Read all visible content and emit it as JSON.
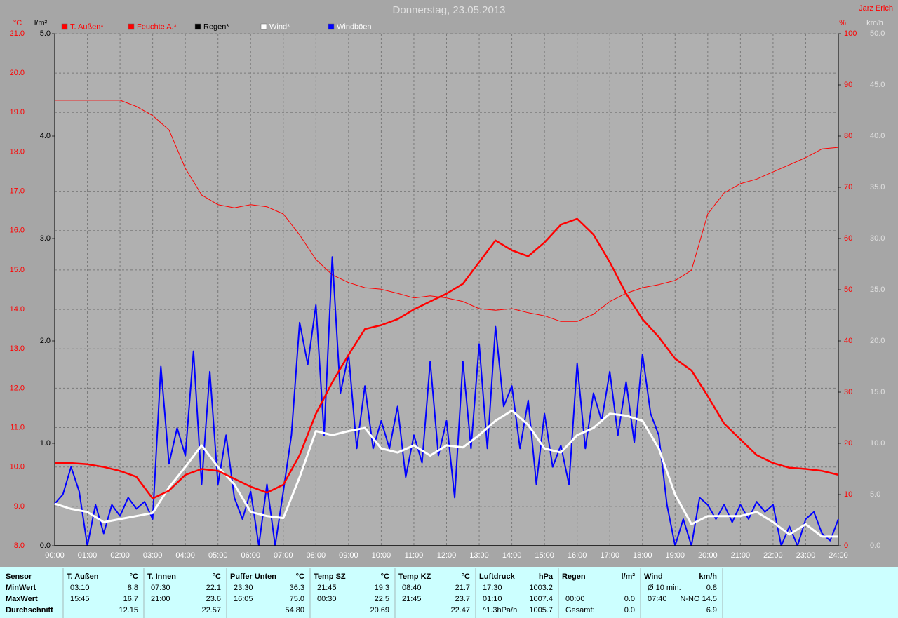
{
  "chart_data": {
    "type": "line",
    "title": "Donnerstag, 23.05.2013",
    "author": "Jarz Erich",
    "y_label": "°C",
    "y2_label": "%",
    "y3_label": "km/h",
    "y4_label": "l/m²",
    "xlim": [
      0,
      24
    ],
    "xticks": [
      {
        "value": 0,
        "label": "00:00"
      },
      {
        "value": 1,
        "label": "01:00"
      },
      {
        "value": 2,
        "label": "02:00"
      },
      {
        "value": 3,
        "label": "03:00"
      },
      {
        "value": 4,
        "label": "04:00"
      },
      {
        "value": 5,
        "label": "05:00"
      },
      {
        "value": 6,
        "label": "06:00"
      },
      {
        "value": 7,
        "label": "07:00"
      },
      {
        "value": 8,
        "label": "08:00"
      },
      {
        "value": 9,
        "label": "09:00"
      },
      {
        "value": 10,
        "label": "10:00"
      },
      {
        "value": 11,
        "label": "11:00"
      },
      {
        "value": 12,
        "label": "12:00"
      },
      {
        "value": 13,
        "label": "13:00"
      },
      {
        "value": 14,
        "label": "14:00"
      },
      {
        "value": 15,
        "label": "15:00"
      },
      {
        "value": 16,
        "label": "16:00"
      },
      {
        "value": 17,
        "label": "17:00"
      },
      {
        "value": 18,
        "label": "18:00"
      },
      {
        "value": 19,
        "label": "19:00"
      },
      {
        "value": 20,
        "label": "20:00"
      },
      {
        "value": 21,
        "label": "21:00"
      },
      {
        "value": 22,
        "label": "22:00"
      },
      {
        "value": 23,
        "label": "23:00"
      },
      {
        "value": 24,
        "label": "24:00"
      }
    ],
    "ylim": [
      8,
      21
    ],
    "yticks": [
      {
        "value": 8,
        "label": "8.0"
      },
      {
        "value": 9,
        "label": "9.0"
      },
      {
        "value": 10,
        "label": "10.0"
      },
      {
        "value": 11,
        "label": "11.0"
      },
      {
        "value": 12,
        "label": "12.0"
      },
      {
        "value": 13,
        "label": "13.0"
      },
      {
        "value": 14,
        "label": "14.0"
      },
      {
        "value": 15,
        "label": "15.0"
      },
      {
        "value": 16,
        "label": "16.0"
      },
      {
        "value": 17,
        "label": "17.0"
      },
      {
        "value": 18,
        "label": "18.0"
      },
      {
        "value": 19,
        "label": "19.0"
      },
      {
        "value": 20,
        "label": "20.0"
      },
      {
        "value": 21,
        "label": "21.0"
      }
    ],
    "y2lim": [
      0,
      100
    ],
    "y2ticks": [
      0,
      10,
      20,
      30,
      40,
      50,
      60,
      70,
      80,
      90,
      100
    ],
    "y3lim": [
      0,
      50
    ],
    "y3ticks": [
      {
        "value": 0,
        "label": "0.0"
      },
      {
        "value": 5,
        "label": "5.0"
      },
      {
        "value": 10,
        "label": "10.0"
      },
      {
        "value": 15,
        "label": "15.0"
      },
      {
        "value": 20,
        "label": "20.0"
      },
      {
        "value": 25,
        "label": "25.0"
      },
      {
        "value": 30,
        "label": "30.0"
      },
      {
        "value": 35,
        "label": "35.0"
      },
      {
        "value": 40,
        "label": "40.0"
      },
      {
        "value": 45,
        "label": "45.0"
      },
      {
        "value": 50,
        "label": "50.0"
      }
    ],
    "y4lim": [
      0,
      5
    ],
    "y4ticks": [
      {
        "value": 0,
        "label": "0.0"
      },
      {
        "value": 1,
        "label": "1.0"
      },
      {
        "value": 2,
        "label": "2.0"
      },
      {
        "value": 3,
        "label": "3.0"
      },
      {
        "value": 4,
        "label": "4.0"
      },
      {
        "value": 5,
        "label": "5.0"
      }
    ],
    "grid": true,
    "series": [
      {
        "name": "T. Außen*",
        "color": "#ff0000",
        "axis": "y",
        "x": [
          0,
          0.5,
          1,
          1.5,
          2,
          2.5,
          3,
          3.5,
          4,
          4.5,
          5,
          5.5,
          6,
          6.5,
          7,
          7.5,
          8,
          8.5,
          9,
          9.5,
          10,
          10.5,
          11,
          11.5,
          12,
          12.5,
          13,
          13.5,
          14,
          14.5,
          15,
          15.5,
          16,
          16.5,
          17,
          17.5,
          18,
          18.5,
          19,
          19.5,
          20,
          20.5,
          21,
          21.5,
          22,
          22.5,
          23,
          23.5,
          24
        ],
        "values": [
          10.1,
          10.1,
          10.07,
          10.0,
          9.9,
          9.75,
          9.2,
          9.4,
          9.8,
          9.95,
          9.9,
          9.7,
          9.5,
          9.35,
          9.55,
          10.3,
          11.35,
          12.15,
          12.85,
          13.5,
          13.6,
          13.75,
          14.0,
          14.2,
          14.4,
          14.65,
          15.2,
          15.75,
          15.5,
          15.35,
          15.7,
          16.15,
          16.3,
          15.9,
          15.2,
          14.4,
          13.75,
          13.3,
          12.75,
          12.45,
          11.8,
          11.1,
          10.7,
          10.3,
          10.1,
          9.98,
          9.95,
          9.9,
          9.8
        ]
      },
      {
        "name": "Feuchte A.*",
        "color": "#ff0000",
        "axis": "y2",
        "x": [
          0,
          0.5,
          1,
          1.5,
          2,
          2.5,
          3,
          3.5,
          4,
          4.5,
          5,
          5.5,
          6,
          6.5,
          7,
          7.5,
          8,
          8.5,
          9,
          9.5,
          10,
          10.5,
          11,
          11.5,
          12,
          12.5,
          13,
          13.5,
          14,
          14.5,
          15,
          15.5,
          16,
          16.5,
          17,
          17.5,
          18,
          18.5,
          19,
          19.5,
          20,
          20.5,
          21,
          21.5,
          22,
          22.5,
          23,
          23.5,
          24
        ],
        "values": [
          87,
          87,
          87,
          87,
          87,
          85.8,
          84,
          81.2,
          73.7,
          68.5,
          66.6,
          66,
          66.6,
          66.2,
          64.8,
          60.7,
          55.9,
          52.9,
          51.4,
          50.4,
          50.1,
          49.3,
          48.4,
          48.8,
          48.4,
          47.7,
          46.3,
          46,
          46.3,
          45.5,
          44.9,
          43.8,
          43.8,
          45.2,
          47.7,
          49.3,
          50.4,
          51,
          51.8,
          53.8,
          64.8,
          68.9,
          70.7,
          71.6,
          73,
          74.4,
          75.8,
          77.5,
          77.8
        ]
      },
      {
        "name": "Regen*",
        "color": "#000000",
        "axis": "y4",
        "x": [
          0,
          24
        ],
        "values": [
          0,
          0
        ]
      },
      {
        "name": "Wind*",
        "color": "#ffffff",
        "axis": "y3",
        "x": [
          0,
          0.5,
          1,
          1.5,
          2,
          2.5,
          3,
          3.5,
          4,
          4.5,
          5,
          5.5,
          6,
          6.5,
          7,
          7.5,
          8,
          8.5,
          9,
          9.5,
          10,
          10.5,
          11,
          11.5,
          12,
          12.5,
          13,
          13.5,
          14,
          14.5,
          15,
          15.5,
          16,
          16.5,
          17,
          17.5,
          18,
          18.5,
          19,
          19.5,
          20,
          20.5,
          21,
          21.5,
          22,
          22.5,
          23,
          23.5,
          24
        ],
        "values": [
          4.1,
          3.6,
          3.3,
          2.3,
          2.6,
          2.9,
          3.2,
          5.7,
          7.7,
          9.8,
          7.7,
          6,
          3.3,
          2.9,
          2.7,
          6.7,
          11.2,
          10.8,
          11.2,
          11.5,
          9.5,
          9.1,
          9.8,
          8.8,
          9.8,
          9.6,
          10.8,
          12.2,
          13.2,
          11.8,
          9.5,
          9.1,
          10.8,
          11.5,
          12.9,
          12.7,
          12.2,
          9.5,
          5,
          2.1,
          2.9,
          2.9,
          2.9,
          3.3,
          2.3,
          1.1,
          2.1,
          0.9,
          0.9
        ]
      },
      {
        "name": "Windböen",
        "color": "#0000ff",
        "axis": "y3",
        "x": [
          0,
          0.25,
          0.5,
          0.75,
          1,
          1.25,
          1.5,
          1.75,
          2,
          2.25,
          2.5,
          2.75,
          3,
          3.25,
          3.5,
          3.75,
          4,
          4.25,
          4.5,
          4.75,
          5,
          5.25,
          5.5,
          5.75,
          6,
          6.25,
          6.5,
          6.75,
          7,
          7.25,
          7.5,
          7.75,
          8,
          8.25,
          8.5,
          8.75,
          9,
          9.25,
          9.5,
          9.75,
          10,
          10.25,
          10.5,
          10.75,
          11,
          11.25,
          11.5,
          11.75,
          12,
          12.25,
          12.5,
          12.75,
          13,
          13.25,
          13.5,
          13.75,
          14,
          14.25,
          14.5,
          14.75,
          15,
          15.25,
          15.5,
          15.75,
          16,
          16.25,
          16.5,
          16.75,
          17,
          17.25,
          17.5,
          17.75,
          18,
          18.25,
          18.5,
          18.75,
          19,
          19.25,
          19.5,
          19.75,
          20,
          20.25,
          20.5,
          20.75,
          21,
          21.25,
          21.5,
          21.75,
          22,
          22.25,
          22.5,
          22.75,
          23,
          23.25,
          23.5,
          23.75,
          24
        ],
        "values": [
          4.1,
          5,
          7.7,
          5.3,
          0,
          4,
          1.2,
          4,
          2.9,
          4.7,
          3.6,
          4.3,
          2.6,
          17.5,
          8,
          11.5,
          8.8,
          19,
          6,
          17,
          6,
          10.8,
          4.7,
          2.6,
          5.3,
          0,
          6,
          0,
          5.3,
          10.8,
          21.8,
          17.7,
          23.5,
          10.8,
          28.2,
          14.9,
          18.7,
          9.5,
          15.6,
          9.5,
          12.2,
          9.5,
          13.6,
          6.7,
          10.8,
          8.1,
          18,
          8.8,
          12.2,
          4.7,
          18,
          9.5,
          19.7,
          9.5,
          21.4,
          13.6,
          15.6,
          9.5,
          14.2,
          6,
          12.9,
          7.7,
          9.8,
          6,
          17.8,
          9.5,
          14.9,
          12.2,
          17,
          10.8,
          16,
          10.1,
          18.7,
          12.9,
          10.8,
          4,
          0,
          2.6,
          0,
          4.7,
          4,
          2.6,
          4,
          2.3,
          4,
          2.6,
          4.3,
          3.3,
          4,
          0,
          1.9,
          0,
          2.6,
          3.3,
          1.2,
          0.5,
          2.6
        ]
      }
    ]
  },
  "table": {
    "row_header": "Sensor",
    "row_labels": [
      "MinWert",
      "MaxWert",
      "Durchschnitt"
    ],
    "columns": [
      {
        "name": "T. Außen",
        "unit": "°C",
        "rows": [
          [
            "03:10",
            "8.8"
          ],
          [
            "15:45",
            "16.7"
          ],
          [
            null,
            "12.15"
          ]
        ]
      },
      {
        "name": "T. Innen",
        "unit": "°C",
        "rows": [
          [
            "07:30",
            "22.1"
          ],
          [
            "21:00",
            "23.6"
          ],
          [
            null,
            "22.57"
          ]
        ]
      },
      {
        "name": "Puffer Unten",
        "unit": "°C",
        "rows": [
          [
            "23:30",
            "36.3"
          ],
          [
            "16:05",
            "75.0"
          ],
          [
            null,
            "54.80"
          ]
        ]
      },
      {
        "name": "Temp SZ",
        "unit": "°C",
        "rows": [
          [
            "21:45",
            "19.3"
          ],
          [
            "00:30",
            "22.5"
          ],
          [
            null,
            "20.69"
          ]
        ]
      },
      {
        "name": "Temp KZ",
        "unit": "°C",
        "rows": [
          [
            "08:40",
            "21.7"
          ],
          [
            "21:45",
            "23.7"
          ],
          [
            null,
            "22.47"
          ]
        ]
      },
      {
        "name": "Luftdruck",
        "unit": "hPa",
        "rows": [
          [
            "17:30",
            "1003.2"
          ],
          [
            "01:10",
            "1007.4"
          ],
          [
            "^1.3hPa/h",
            "1005.7"
          ]
        ]
      },
      {
        "name": "Regen",
        "unit": "l/m²",
        "rows": [
          [
            null,
            null
          ],
          [
            "00:00",
            "0.0"
          ],
          [
            "Gesamt:",
            "0.0"
          ]
        ]
      },
      {
        "name": "Wind",
        "unit": "km/h",
        "rows": [
          [
            "Ø 10 min.",
            "0.8"
          ],
          [
            "07:40",
            "N-NO 14.5"
          ],
          [
            null,
            "6.9"
          ]
        ]
      }
    ]
  }
}
